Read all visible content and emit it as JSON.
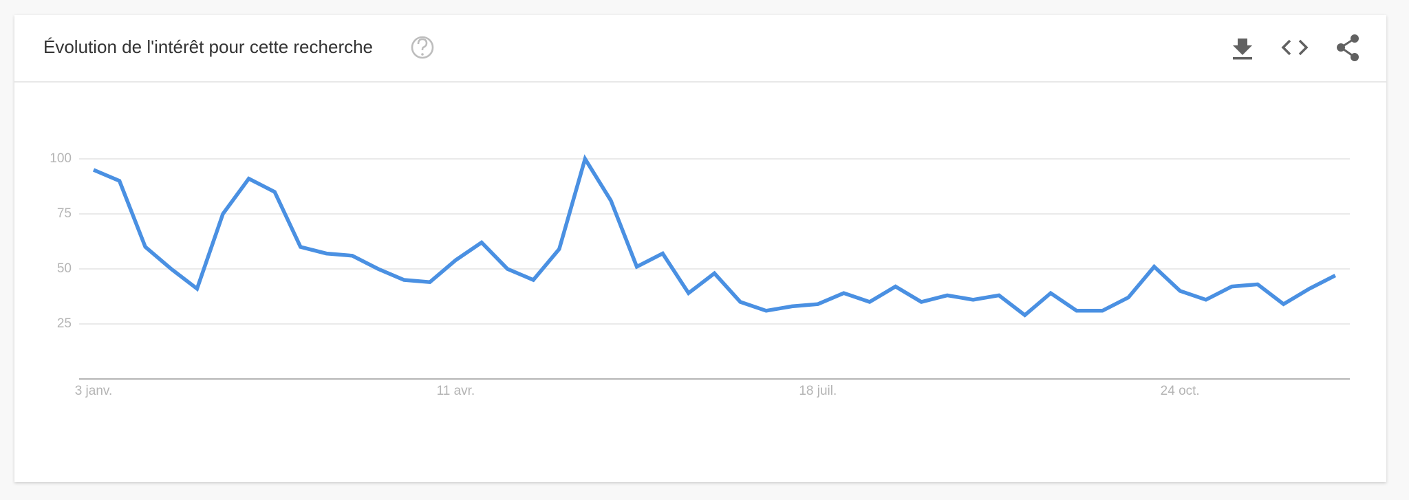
{
  "chart_data": {
    "type": "line",
    "title": "Évolution de l'intérêt pour cette recherche",
    "categories": [
      "3 janv.",
      null,
      null,
      null,
      null,
      null,
      null,
      null,
      null,
      null,
      null,
      null,
      null,
      null,
      "11 avr.",
      null,
      null,
      null,
      null,
      null,
      null,
      null,
      null,
      null,
      null,
      null,
      null,
      null,
      "18 juil.",
      null,
      null,
      null,
      null,
      null,
      null,
      null,
      null,
      null,
      null,
      null,
      null,
      null,
      "24 oct.",
      null,
      null,
      null,
      null,
      null,
      null
    ],
    "values": [
      95,
      90,
      60,
      50,
      41,
      75,
      91,
      85,
      60,
      57,
      56,
      50,
      45,
      44,
      54,
      62,
      50,
      45,
      59,
      100,
      81,
      51,
      57,
      39,
      48,
      35,
      31,
      33,
      34,
      39,
      35,
      42,
      35,
      38,
      36,
      38,
      29,
      39,
      31,
      31,
      37,
      51,
      40,
      36,
      42,
      43,
      34,
      41,
      47
    ],
    "color": "#4a90e2",
    "ylim": [
      0,
      100
    ],
    "yticks": [
      25,
      50,
      75,
      100
    ],
    "grid": true
  }
}
